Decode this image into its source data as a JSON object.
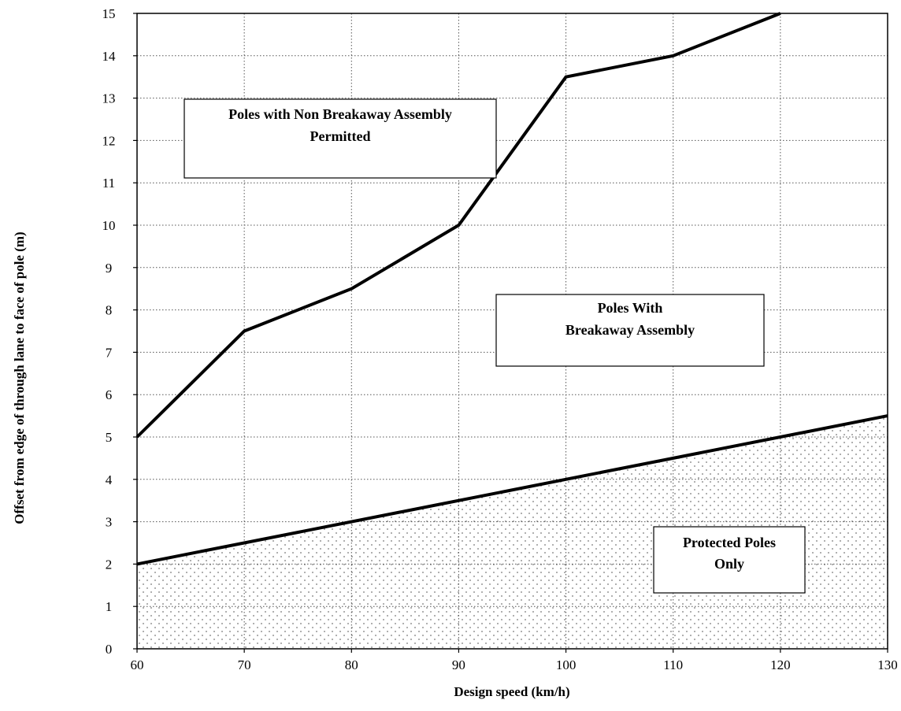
{
  "chart_data": {
    "type": "line",
    "title": "",
    "xlabel": "Design speed (km/h)",
    "ylabel": "Offset from edge of through lane to face of pole (m)",
    "xlim": [
      60,
      130
    ],
    "ylim": [
      0,
      15
    ],
    "x_ticks": [
      60,
      70,
      80,
      90,
      100,
      110,
      120,
      130
    ],
    "y_ticks": [
      0,
      1,
      2,
      3,
      4,
      5,
      6,
      7,
      8,
      9,
      10,
      11,
      12,
      13,
      14,
      15
    ],
    "grid": true,
    "grid_style": "dotted",
    "series": [
      {
        "x": [
          60,
          70,
          80,
          90,
          100,
          110,
          120
        ],
        "y": [
          5.0,
          7.5,
          8.5,
          10.0,
          13.5,
          14.0,
          15.0
        ]
      },
      {
        "x": [
          60,
          130
        ],
        "y": [
          2.0,
          5.5
        ],
        "fill_below": "dotted"
      }
    ],
    "annotations": [
      {
        "lines": [
          "Poles with Non Breakaway Assembly",
          "Permitted"
        ]
      },
      {
        "lines": [
          "Poles With",
          "Breakaway Assembly"
        ]
      },
      {
        "lines": [
          "Protected Poles",
          "Only"
        ]
      }
    ],
    "colors": {
      "line": "#000000",
      "grid": "#555555",
      "stipple": "#777777"
    }
  }
}
